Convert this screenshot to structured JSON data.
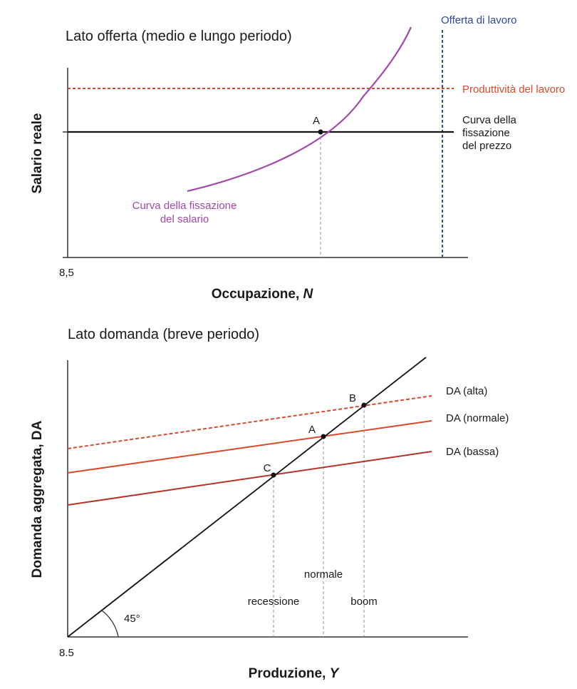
{
  "chart_data": [
    {
      "type": "line",
      "title": "Lato offerta (medio e lungo periodo)",
      "xlabel": "Occupazione, ",
      "xlabel_italic": "N",
      "ylabel": "Salario reale",
      "origin_label": "8,5",
      "series": [
        {
          "name": "Offerta di lavoro",
          "style": "dashed-vertical",
          "color": "#2b4a9b"
        },
        {
          "name": "Produttività del lavoro",
          "style": "dashed-horizontal",
          "color": "#d84a2b"
        },
        {
          "name": "Curva della fissazione del prezzo",
          "name_lines": [
            "Curva della",
            "fissazione",
            "del prezzo"
          ],
          "style": "solid-horizontal",
          "color": "#111111"
        },
        {
          "name": "Curva della fissazione del salario",
          "name_lines": [
            "Curva della fissazione",
            "del salario"
          ],
          "style": "curve",
          "color": "#a24aa8"
        }
      ],
      "points": [
        {
          "label": "A"
        }
      ]
    },
    {
      "type": "line",
      "title": "Lato domanda (breve periodo)",
      "xlabel": "Produzione, ",
      "xlabel_italic": "Y",
      "ylabel": "Domanda aggregata, DA",
      "origin_label": "8.5",
      "angle_label": "45°",
      "series": [
        {
          "name": "DA (alta)",
          "style": "dashed",
          "color": "#d84a2b"
        },
        {
          "name": "DA (normale)",
          "style": "solid",
          "color": "#d84a2b"
        },
        {
          "name": "DA (bassa)",
          "style": "solid",
          "color": "#b8322a"
        },
        {
          "name": "45° line",
          "style": "solid",
          "color": "#111111"
        }
      ],
      "points": [
        {
          "label": "B",
          "marker": "boom"
        },
        {
          "label": "A",
          "marker": "normale"
        },
        {
          "label": "C",
          "marker": "recessione"
        }
      ]
    }
  ],
  "colors": {
    "labor_supply": "#2b4a9b",
    "productivity": "#d84a2b",
    "wage_setting": "#a24aa8",
    "price_setting": "#111111",
    "da_high": "#d84a2b",
    "da_normal": "#d84a2b",
    "da_low": "#b8322a",
    "guide": "#8a8f99"
  }
}
